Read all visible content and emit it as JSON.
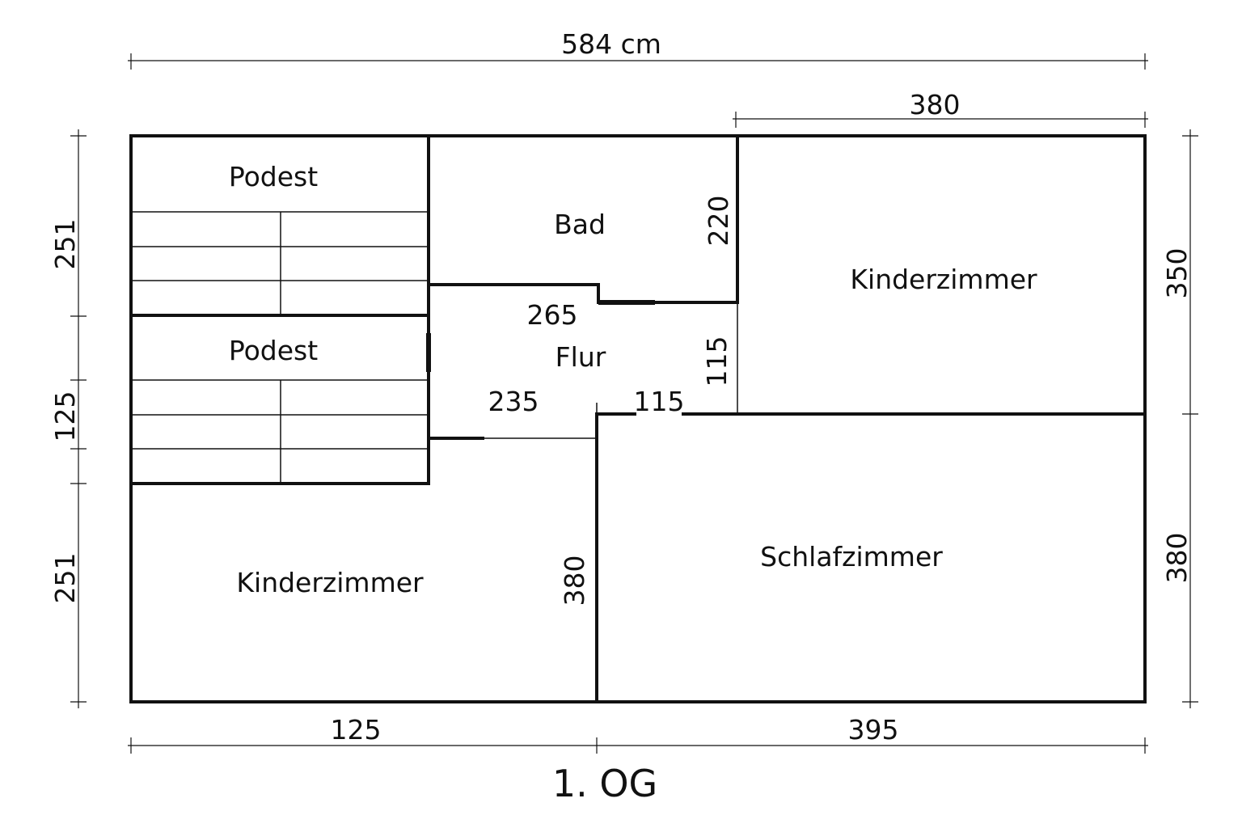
{
  "floor_title": "1. OG",
  "rooms": {
    "podest_top": "Podest",
    "podest_bottom": "Podest",
    "bad": "Bad",
    "flur": "Flur",
    "kinderzimmer_right": "Kinderzimmer",
    "kinderzimmer_left": "Kinderzimmer",
    "schlafzimmer": "Schlafzimmer"
  },
  "dimensions": {
    "total_width": "584 cm",
    "top_right": "380",
    "left_top": "251",
    "left_middle": "125",
    "left_bottom": "251",
    "right_top": "350",
    "right_bottom": "380",
    "bottom_left": "125",
    "bottom_right": "395",
    "bad_height": "220",
    "flur_265": "265",
    "flur_235": "235",
    "flur_115_horizontal": "115",
    "flur_115_vertical": "115",
    "kinderzimmer_left_height": "380"
  }
}
